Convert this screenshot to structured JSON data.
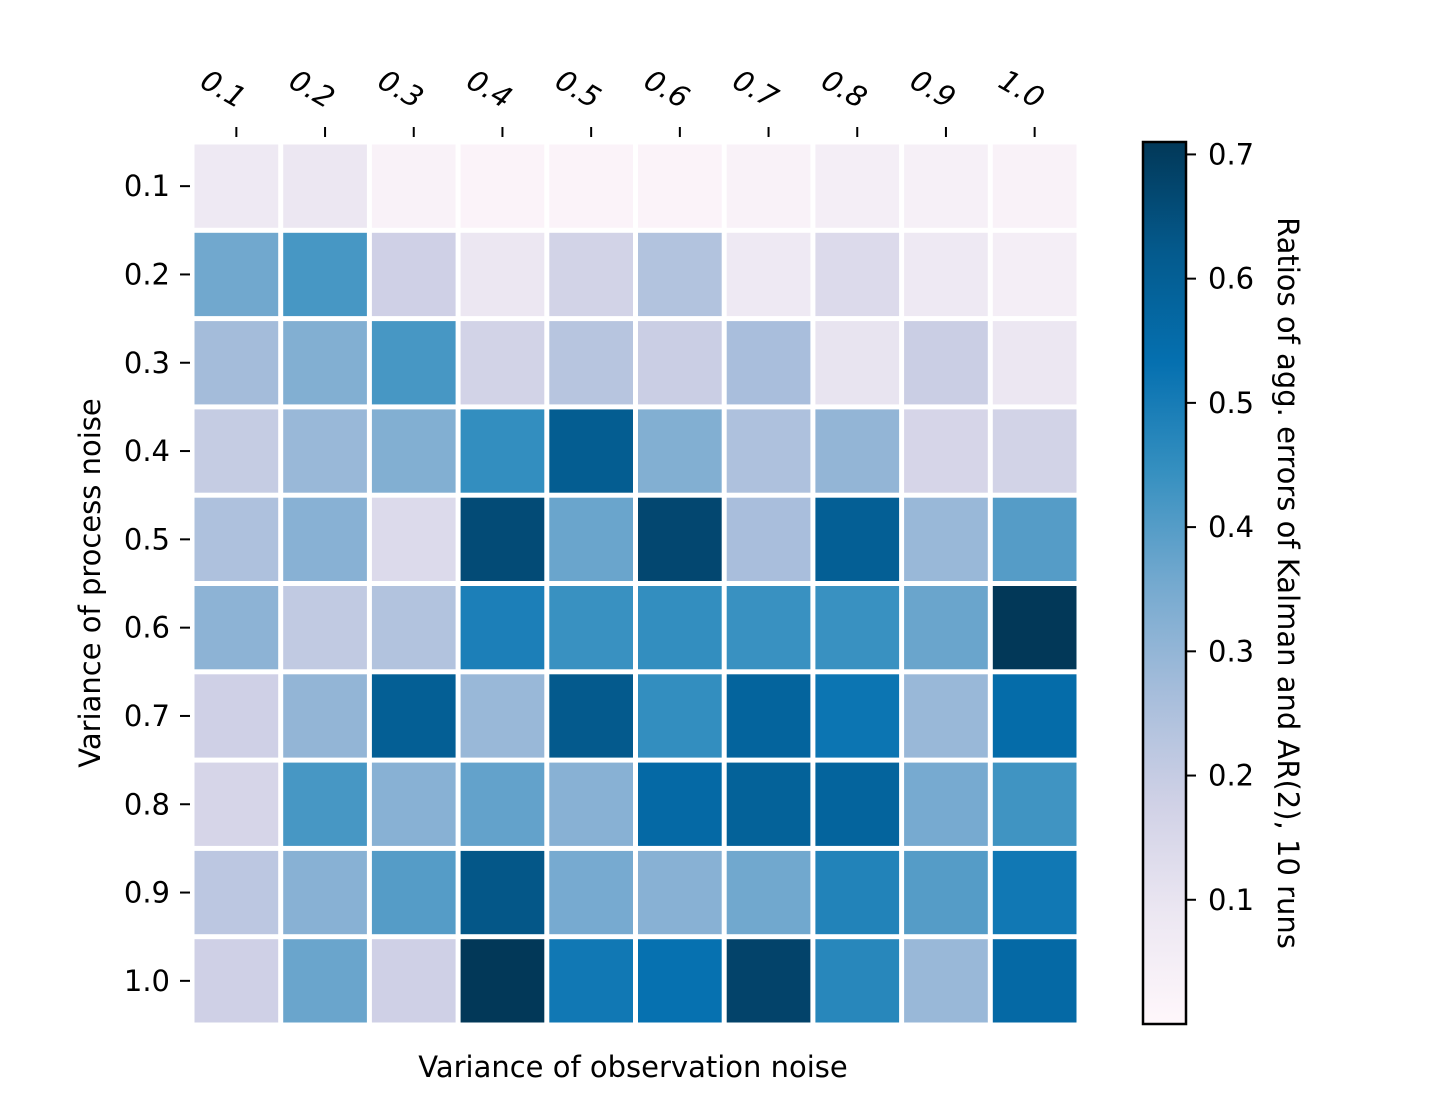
{
  "chart_data": {
    "type": "heatmap",
    "title": "",
    "xlabel": "Variance of observation noise",
    "ylabel": "Variance of process noise",
    "x_categories": [
      "0.1",
      "0.2",
      "0.3",
      "0.4",
      "0.5",
      "0.6",
      "0.7",
      "0.8",
      "0.9",
      "1.0"
    ],
    "y_categories": [
      "0.1",
      "0.2",
      "0.3",
      "0.4",
      "0.5",
      "0.6",
      "0.7",
      "0.8",
      "0.9",
      "1.0"
    ],
    "x_axis_position": "top",
    "x_tick_label_style": "rotated-italic",
    "values": [
      [
        0.08,
        0.09,
        0.03,
        0.02,
        0.02,
        0.02,
        0.03,
        0.05,
        0.04,
        0.03
      ],
      [
        0.36,
        0.42,
        0.18,
        0.09,
        0.17,
        0.24,
        0.08,
        0.14,
        0.08,
        0.05
      ],
      [
        0.27,
        0.33,
        0.42,
        0.17,
        0.23,
        0.19,
        0.26,
        0.1,
        0.19,
        0.09
      ],
      [
        0.2,
        0.29,
        0.33,
        0.45,
        0.61,
        0.33,
        0.25,
        0.3,
        0.16,
        0.17
      ],
      [
        0.25,
        0.32,
        0.14,
        0.66,
        0.37,
        0.67,
        0.26,
        0.6,
        0.29,
        0.4
      ],
      [
        0.31,
        0.21,
        0.24,
        0.49,
        0.44,
        0.45,
        0.44,
        0.44,
        0.37,
        0.71
      ],
      [
        0.18,
        0.3,
        0.6,
        0.29,
        0.62,
        0.45,
        0.58,
        0.52,
        0.29,
        0.55
      ],
      [
        0.16,
        0.42,
        0.32,
        0.38,
        0.32,
        0.56,
        0.59,
        0.58,
        0.35,
        0.43
      ],
      [
        0.22,
        0.32,
        0.4,
        0.63,
        0.35,
        0.32,
        0.36,
        0.48,
        0.4,
        0.51
      ],
      [
        0.18,
        0.37,
        0.18,
        0.71,
        0.51,
        0.53,
        0.68,
        0.47,
        0.29,
        0.56
      ]
    ],
    "colorbar": {
      "label": "Ratios of agg. errors of Kalman and AR(2), 10 runs",
      "vmin": 0.0,
      "vmax": 0.71,
      "ticks": [
        "0.1",
        "0.2",
        "0.3",
        "0.4",
        "0.5",
        "0.6",
        "0.7"
      ],
      "colormap": "PuBu",
      "colormap_stops": [
        "#fff7fb",
        "#ece7f2",
        "#d0d1e6",
        "#a6bddb",
        "#74a9cf",
        "#3690c0",
        "#0570b0",
        "#045a8d",
        "#023858"
      ]
    },
    "cell_separator_color": "#ffffff",
    "grid": false,
    "legend": "colorbar-right"
  }
}
